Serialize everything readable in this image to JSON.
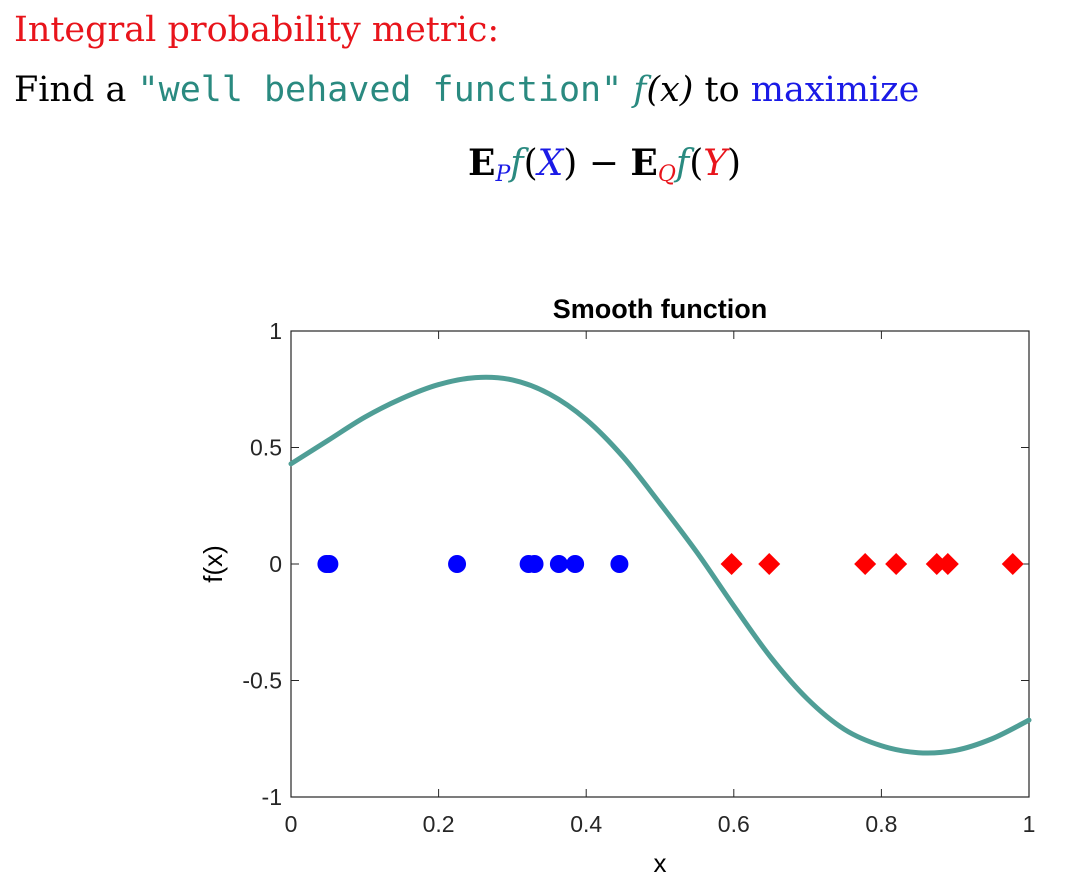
{
  "slide": {
    "heading": "Integral probability metric:",
    "line2": {
      "prefix": "Find a ",
      "quoted": "\"well behaved function\"",
      "func_f": "f",
      "func_arg": "(x)",
      "middle": " to ",
      "maximize": "maximize"
    },
    "formula": {
      "E1": "E",
      "sub_P": "P",
      "f1": "f",
      "open1": "(",
      "X": "X",
      "close1": ")",
      "minus": " − ",
      "E2": "E",
      "sub_Q": "Q",
      "f2": "f",
      "open2": "(",
      "Y": "Y",
      "close2": ")"
    }
  },
  "colors": {
    "red": "#e8141b",
    "blue": "#1a1ae6",
    "teal": "#2a8a80",
    "curve": "#4f9e96",
    "point_blue": "#0000ff",
    "point_red": "#ff0000"
  },
  "chart_data": {
    "type": "line",
    "title": "Smooth function",
    "xlabel": "x",
    "ylabel": "f(x)",
    "xlim": [
      0,
      1
    ],
    "ylim": [
      -1,
      1
    ],
    "xticks": [
      "0",
      "0.2",
      "0.4",
      "0.6",
      "0.8",
      "1"
    ],
    "xtick_values": [
      0,
      0.2,
      0.4,
      0.6,
      0.8,
      1
    ],
    "yticks": [
      "1",
      "0.5",
      "0",
      "-0.5",
      "-1"
    ],
    "ytick_values": [
      1,
      0.5,
      0,
      -0.5,
      -1
    ],
    "grid": false,
    "series": [
      {
        "kind": "line",
        "x": [
          0,
          0.05,
          0.1,
          0.15,
          0.2,
          0.25,
          0.3,
          0.35,
          0.4,
          0.45,
          0.5,
          0.55,
          0.6,
          0.65,
          0.7,
          0.75,
          0.8,
          0.85,
          0.9,
          0.95,
          1.0
        ],
        "y": [
          0.43,
          0.53,
          0.63,
          0.71,
          0.77,
          0.8,
          0.79,
          0.73,
          0.62,
          0.46,
          0.26,
          0.05,
          -0.18,
          -0.4,
          -0.58,
          -0.71,
          -0.78,
          -0.81,
          -0.8,
          -0.75,
          -0.67
        ]
      },
      {
        "kind": "scatter",
        "marker": "circle",
        "x": [
          0.048,
          0.052,
          0.225,
          0.322,
          0.33,
          0.363,
          0.385,
          0.445
        ],
        "y": [
          0,
          0,
          0,
          0,
          0,
          0,
          0,
          0
        ]
      },
      {
        "kind": "scatter",
        "marker": "diamond",
        "x": [
          0.597,
          0.648,
          0.778,
          0.82,
          0.875,
          0.89,
          0.978
        ],
        "y": [
          0,
          0,
          0,
          0,
          0,
          0,
          0
        ]
      }
    ]
  }
}
